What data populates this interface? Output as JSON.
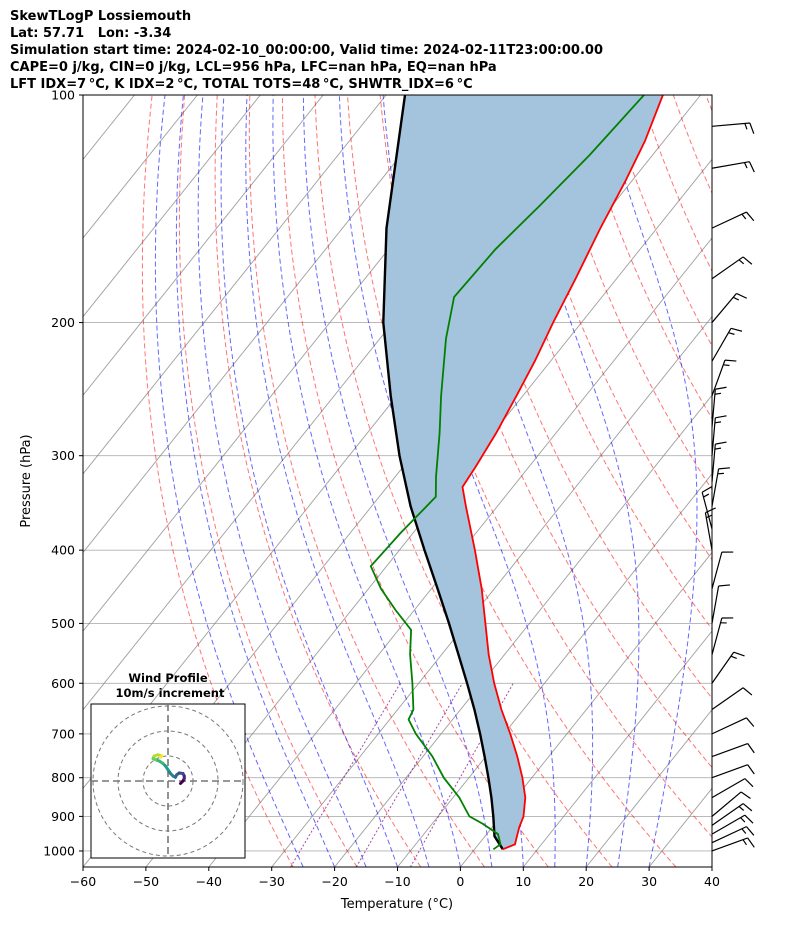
{
  "header": {
    "title": "SkewTLogP Lossiemouth",
    "location": "Lat: 57.71   Lon: -3.34",
    "times": "Simulation start time: 2024-02-10_00:00:00, Valid time: 2024-02-11T23:00:00.00",
    "indices1": "CAPE=0 j/kg, CIN=0 j/kg, LCL=956 hPa, LFC=nan hPa, EQ=nan hPa",
    "indices2": "LFT IDX=7$^\\circ$C, K IDX=2$^\\circ$C, TOTAL TOTS=48$^\\circ$C, SHWTR_IDX=6$^\\circ$C",
    "indices2_display": "LFT IDX=7 °C, K IDX=2 °C, TOTAL TOTS=48 °C, SHWTR_IDX=6 °C"
  },
  "colors": {
    "temperature": "#ff0000",
    "dewpoint": "#008000",
    "parcel": "#000000",
    "cape_fill": "#a3c4dc",
    "dry_adiabat": "#ff0000",
    "moist_adiabat": "#0000ff",
    "mixing_ratio": "#800080",
    "isotherm": "#808080"
  },
  "chart_data": {
    "type": "skew-t",
    "xlabel": "Temperature ($^\\circ$C)",
    "xlabel_display": "Temperature (°C)",
    "ylabel": "Pressure (hPa)",
    "xlim": [
      -60,
      40
    ],
    "ylim": [
      1050,
      100
    ],
    "x_ticks": [
      -60,
      -50,
      -40,
      -30,
      -20,
      -10,
      0,
      10,
      20,
      30,
      40
    ],
    "x_tick_labels": [
      "−60",
      "−50",
      "−40",
      "−30",
      "−20",
      "−10",
      "0",
      "10",
      "20",
      "30",
      "40"
    ],
    "y_ticks": [
      1000,
      900,
      800,
      700,
      600,
      500,
      400,
      300,
      200,
      100
    ],
    "y_tick_labels": [
      "1000",
      "900",
      "800",
      "700",
      "600",
      "500",
      "400",
      "300",
      "200",
      "100"
    ],
    "temperature_profile": [
      {
        "p": 995,
        "t": 4.5
      },
      {
        "p": 980,
        "t": 5.8
      },
      {
        "p": 960,
        "t": 5.2
      },
      {
        "p": 930,
        "t": 4.3
      },
      {
        "p": 900,
        "t": 3.6
      },
      {
        "p": 850,
        "t": 1.5
      },
      {
        "p": 800,
        "t": -1.5
      },
      {
        "p": 750,
        "t": -5.0
      },
      {
        "p": 700,
        "t": -9.0
      },
      {
        "p": 650,
        "t": -13.5
      },
      {
        "p": 600,
        "t": -18.0
      },
      {
        "p": 550,
        "t": -22.5
      },
      {
        "p": 500,
        "t": -27.0
      },
      {
        "p": 450,
        "t": -32.0
      },
      {
        "p": 400,
        "t": -38.0
      },
      {
        "p": 350,
        "t": -45.0
      },
      {
        "p": 330,
        "t": -48.0
      },
      {
        "p": 310,
        "t": -48.5
      },
      {
        "p": 280,
        "t": -49.5
      },
      {
        "p": 250,
        "t": -51.0
      },
      {
        "p": 225,
        "t": -52.5
      },
      {
        "p": 200,
        "t": -54.5
      },
      {
        "p": 175,
        "t": -56.5
      },
      {
        "p": 150,
        "t": -59.0
      },
      {
        "p": 130,
        "t": -61.0
      },
      {
        "p": 115,
        "t": -63.0
      },
      {
        "p": 100,
        "t": -66.0
      }
    ],
    "dewpoint_profile": [
      {
        "p": 995,
        "t": 3.0
      },
      {
        "p": 980,
        "t": 3.5
      },
      {
        "p": 950,
        "t": 1.8
      },
      {
        "p": 920,
        "t": -2.0
      },
      {
        "p": 900,
        "t": -5.0
      },
      {
        "p": 850,
        "t": -9.0
      },
      {
        "p": 800,
        "t": -14.0
      },
      {
        "p": 750,
        "t": -18.5
      },
      {
        "p": 700,
        "t": -24.0
      },
      {
        "p": 670,
        "t": -27.0
      },
      {
        "p": 650,
        "t": -27.5
      },
      {
        "p": 600,
        "t": -31.0
      },
      {
        "p": 550,
        "t": -35.0
      },
      {
        "p": 510,
        "t": -38.0
      },
      {
        "p": 480,
        "t": -43.0
      },
      {
        "p": 450,
        "t": -48.0
      },
      {
        "p": 420,
        "t": -52.5
      },
      {
        "p": 380,
        "t": -52.0
      },
      {
        "p": 340,
        "t": -51.0
      },
      {
        "p": 320,
        "t": -53.5
      },
      {
        "p": 280,
        "t": -58.5
      },
      {
        "p": 250,
        "t": -63.0
      },
      {
        "p": 210,
        "t": -69.5
      },
      {
        "p": 185,
        "t": -73.5
      },
      {
        "p": 160,
        "t": -73.0
      },
      {
        "p": 140,
        "t": -71.5
      },
      {
        "p": 120,
        "t": -70.0
      },
      {
        "p": 100,
        "t": -69.0
      }
    ],
    "parcel_profile": [
      {
        "p": 995,
        "t": 4.5
      },
      {
        "p": 956,
        "t": 1.5
      },
      {
        "p": 900,
        "t": -1.2
      },
      {
        "p": 850,
        "t": -3.9
      },
      {
        "p": 800,
        "t": -6.9
      },
      {
        "p": 750,
        "t": -10.2
      },
      {
        "p": 700,
        "t": -13.8
      },
      {
        "p": 650,
        "t": -17.8
      },
      {
        "p": 600,
        "t": -22.3
      },
      {
        "p": 550,
        "t": -27.3
      },
      {
        "p": 500,
        "t": -32.8
      },
      {
        "p": 450,
        "t": -39.0
      },
      {
        "p": 400,
        "t": -46.0
      },
      {
        "p": 350,
        "t": -53.8
      },
      {
        "p": 300,
        "t": -62.0
      },
      {
        "p": 250,
        "t": -71.0
      },
      {
        "p": 200,
        "t": -81.5
      },
      {
        "p": 150,
        "t": -93.0
      },
      {
        "p": 100,
        "t": -107.0
      }
    ],
    "wind_barbs": [
      {
        "p": 1000,
        "speed_kt": 15,
        "dir_deg": 250
      },
      {
        "p": 975,
        "speed_kt": 15,
        "dir_deg": 245
      },
      {
        "p": 950,
        "speed_kt": 15,
        "dir_deg": 240
      },
      {
        "p": 925,
        "speed_kt": 15,
        "dir_deg": 235
      },
      {
        "p": 900,
        "speed_kt": 10,
        "dir_deg": 230
      },
      {
        "p": 850,
        "speed_kt": 10,
        "dir_deg": 240
      },
      {
        "p": 800,
        "speed_kt": 10,
        "dir_deg": 250
      },
      {
        "p": 750,
        "speed_kt": 10,
        "dir_deg": 250
      },
      {
        "p": 700,
        "speed_kt": 10,
        "dir_deg": 245
      },
      {
        "p": 650,
        "speed_kt": 10,
        "dir_deg": 235
      },
      {
        "p": 600,
        "speed_kt": 15,
        "dir_deg": 215
      },
      {
        "p": 550,
        "speed_kt": 15,
        "dir_deg": 195
      },
      {
        "p": 500,
        "speed_kt": 10,
        "dir_deg": 190
      },
      {
        "p": 450,
        "speed_kt": 10,
        "dir_deg": 195
      },
      {
        "p": 400,
        "speed_kt": 15,
        "dir_deg": 170
      },
      {
        "p": 375,
        "speed_kt": 15,
        "dir_deg": 165
      },
      {
        "p": 350,
        "speed_kt": 15,
        "dir_deg": 190
      },
      {
        "p": 325,
        "speed_kt": 15,
        "dir_deg": 185
      },
      {
        "p": 300,
        "speed_kt": 15,
        "dir_deg": 185
      },
      {
        "p": 275,
        "speed_kt": 15,
        "dir_deg": 185
      },
      {
        "p": 250,
        "speed_kt": 15,
        "dir_deg": 200
      },
      {
        "p": 225,
        "speed_kt": 15,
        "dir_deg": 210
      },
      {
        "p": 200,
        "speed_kt": 15,
        "dir_deg": 220
      },
      {
        "p": 175,
        "speed_kt": 15,
        "dir_deg": 235
      },
      {
        "p": 150,
        "speed_kt": 15,
        "dir_deg": 245
      },
      {
        "p": 125,
        "speed_kt": 15,
        "dir_deg": 260
      },
      {
        "p": 110,
        "speed_kt": 15,
        "dir_deg": 265
      }
    ],
    "hodograph": {
      "title_line1": "Wind Profile",
      "title_line2": "10m/s increment",
      "ring_step_ms": 10,
      "rings": [
        10,
        20,
        30
      ],
      "points_uv": [
        [
          5.0,
          -1.0
        ],
        [
          6.0,
          0.0
        ],
        [
          6.5,
          1.0
        ],
        [
          6.5,
          2.0
        ],
        [
          6.0,
          3.0
        ],
        [
          4.5,
          3.2
        ],
        [
          3.5,
          2.5
        ],
        [
          3.0,
          1.5
        ],
        [
          2.0,
          2.0
        ],
        [
          1.0,
          3.0
        ],
        [
          0.0,
          4.5
        ],
        [
          -1.0,
          6.0
        ],
        [
          -2.0,
          7.0
        ],
        [
          -3.5,
          8.0
        ],
        [
          -5.0,
          8.5
        ],
        [
          -6.0,
          9.0
        ],
        [
          -5.5,
          10.0
        ],
        [
          -4.0,
          10.5
        ],
        [
          -2.5,
          10.0
        ],
        [
          -3.0,
          9.5
        ]
      ]
    }
  }
}
